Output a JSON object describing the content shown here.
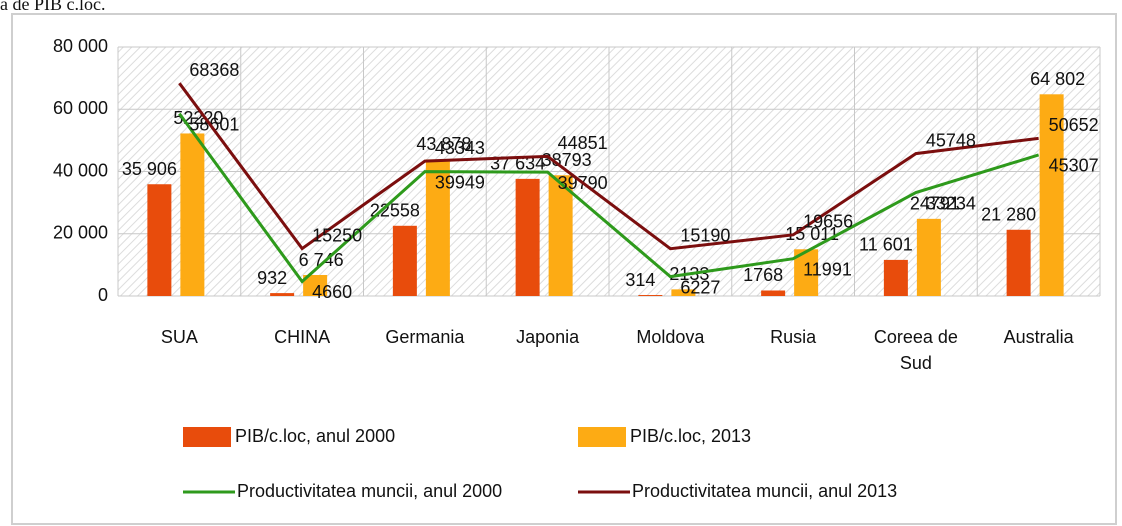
{
  "caption": "a de PIB c.loc.",
  "chart_data": {
    "type": "bar_line",
    "categories": [
      "SUA",
      "CHINA",
      "Germania",
      "Japonia",
      "Moldova",
      "Rusia",
      "Coreea de Sud",
      "Australia"
    ],
    "series": [
      {
        "name": "PIB/c.loc, anul 2000",
        "kind": "bar",
        "color": "#e84c0c",
        "values": [
          35906,
          932,
          22558,
          37634,
          314,
          1768,
          11601,
          21280
        ],
        "value_labels": [
          "35 906",
          "932",
          "22558",
          "37 634",
          "314",
          "1768",
          "11 601",
          "21 280"
        ]
      },
      {
        "name": "PIB/c.loc, 2013",
        "kind": "bar",
        "color": "#fdab14",
        "values": [
          52220,
          6746,
          43878,
          38793,
          2133,
          15011,
          24791,
          64802
        ],
        "value_labels": [
          "52220",
          "6 746",
          "43 878",
          "38793",
          "2133",
          "15 011",
          "24791",
          "64 802"
        ]
      },
      {
        "name": "Productivitatea muncii, anul 2000",
        "kind": "line",
        "color": "#2e9a1c",
        "values": [
          58601,
          4660,
          39949,
          39790,
          6227,
          11991,
          33234,
          45307
        ]
      },
      {
        "name": "Productivitatea muncii, anul 2013",
        "kind": "line",
        "color": "#7b0e0e",
        "values": [
          68368,
          15250,
          43343,
          44851,
          15190,
          19656,
          45748,
          50652
        ]
      }
    ],
    "ylim": [
      0,
      80000
    ],
    "yticks": [
      0,
      {
        "value": 20000,
        "label": "20 000"
      },
      {
        "value": 40000,
        "label": "40 000"
      },
      {
        "value": 60000,
        "label": "60 000"
      },
      {
        "value": 80000,
        "label": "80 000"
      }
    ],
    "grid": true
  }
}
